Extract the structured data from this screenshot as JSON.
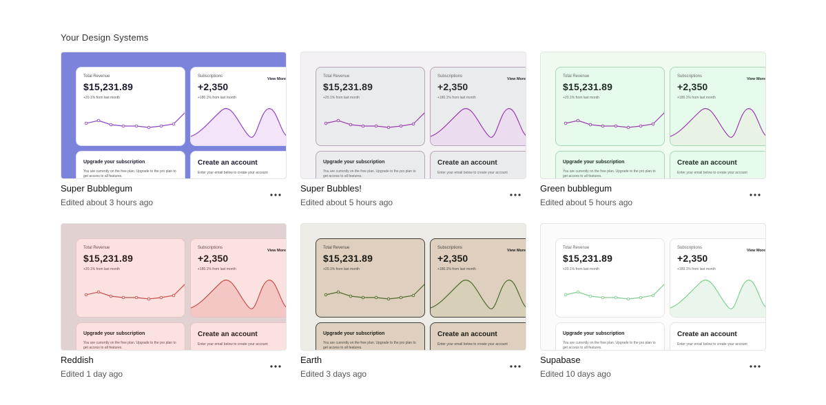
{
  "section_title": "Your Design Systems",
  "preview": {
    "total_revenue_label": "Total Revenue",
    "total_revenue_value": "$15,231.89",
    "total_revenue_change": "+20.1% from last month",
    "subscriptions_label": "Subscriptions",
    "subscriptions_value": "+2,350",
    "subscriptions_change": "+180.1% from last month",
    "view_more": "View More",
    "upgrade_title": "Upgrade your subscription",
    "upgrade_desc": "You are currently on the free plan. Upgrade to the pro plan to get access to all features.",
    "create_title": "Create an account",
    "create_desc": "Enter your email below to create your account"
  },
  "cards": [
    {
      "name": "Super Bubblegum",
      "time": "Edited about 3 hours ago",
      "colors": {
        "bg": "#7b84da",
        "panel": "#ffffff",
        "border": "#dcdcf5",
        "line": "#8e44c4",
        "fill": "#f4e4fa",
        "text": "#1a1a2e",
        "muted": "#555"
      }
    },
    {
      "name": "Super Bubbles!",
      "time": "Edited about 5 hours ago",
      "colors": {
        "bg": "#f3f1f3",
        "panel": "#e9ebec",
        "border": "#b7a2b7",
        "line": "#9b3ab0",
        "fill": "#ecdcef",
        "text": "#2a2a2a",
        "muted": "#666"
      }
    },
    {
      "name": "Green bubblegum",
      "time": "Edited about 5 hours ago",
      "colors": {
        "bg": "#f0fbf0",
        "panel": "#e6fbec",
        "border": "#a6d8b4",
        "line": "#9b3ab0",
        "fill": "#e8f3e6",
        "text": "#1f2b22",
        "muted": "#666"
      }
    },
    {
      "name": "Reddish",
      "time": "Edited 1 day ago",
      "colors": {
        "bg": "#e1d1d0",
        "panel": "#fbe2e1",
        "border": "#e7c3c2",
        "line": "#c4504a",
        "fill": "#f4c7c4",
        "text": "#2b1a1a",
        "muted": "#6a4a4a"
      }
    },
    {
      "name": "Earth",
      "time": "Edited 3 days ago",
      "colors": {
        "bg": "#ecebe5",
        "panel": "#decfbf",
        "border": "#3f3f3a",
        "line": "#4c6a2a",
        "fill": "#d8cfb9",
        "text": "#1a1a14",
        "muted": "#4a4a40"
      }
    },
    {
      "name": "Supabase",
      "time": "Edited 10 days ago",
      "colors": {
        "bg": "#fbfbfb",
        "panel": "#ffffff",
        "border": "#e5e5e5",
        "line": "#7fcf8e",
        "fill": "#eaf6ec",
        "text": "#1a1a1a",
        "muted": "#666"
      }
    }
  ]
}
